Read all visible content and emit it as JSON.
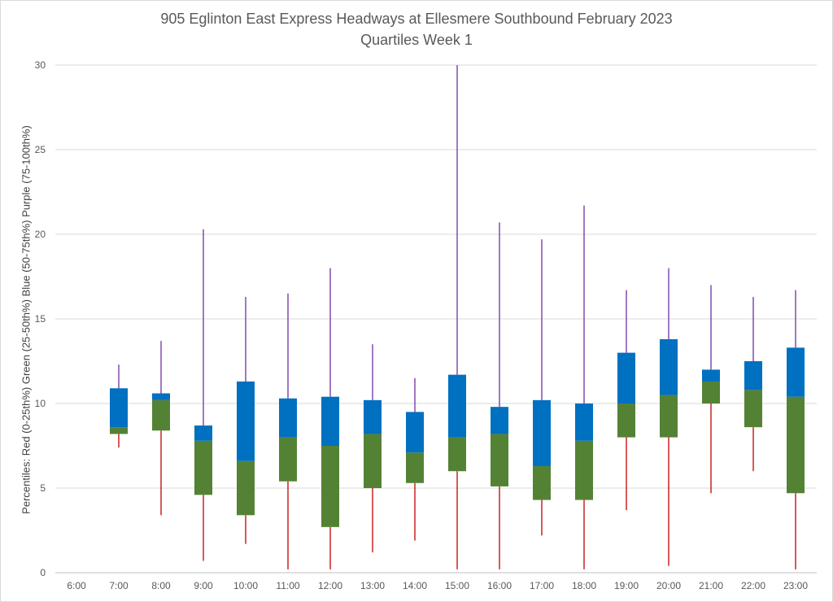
{
  "chart_data": {
    "type": "box",
    "title": "905 Eglinton East Express Headways at Ellesmere Southbound February 2023",
    "subtitle": "Quartiles Week 1",
    "ylabel": "Percentiles:  Red (0-25th%)  Green (25-50th%)  Blue (50-75th%)  Purple (75-100th%)",
    "ylim": [
      0,
      30
    ],
    "yticks": [
      0,
      5,
      10,
      15,
      20,
      25,
      30
    ],
    "grid": true,
    "categories": [
      "6:00",
      "7:00",
      "8:00",
      "9:00",
      "10:00",
      "11:00",
      "12:00",
      "13:00",
      "14:00",
      "15:00",
      "16:00",
      "17:00",
      "18:00",
      "19:00",
      "20:00",
      "21:00",
      "22:00",
      "23:00"
    ],
    "min": [
      null,
      7.4,
      3.4,
      0.7,
      1.7,
      0.2,
      0.2,
      1.2,
      1.9,
      0.2,
      0.2,
      2.2,
      0.2,
      3.7,
      0.4,
      4.7,
      6.0,
      0.2
    ],
    "q1": [
      null,
      8.2,
      8.4,
      4.6,
      3.4,
      5.4,
      2.7,
      5.0,
      5.3,
      6.0,
      5.1,
      4.3,
      4.3,
      8.0,
      8.0,
      10.0,
      8.6,
      4.7
    ],
    "median": [
      null,
      8.6,
      10.2,
      7.8,
      6.6,
      8.0,
      7.5,
      8.2,
      7.1,
      8.0,
      8.2,
      6.3,
      7.8,
      10.0,
      10.5,
      11.3,
      10.8,
      10.4
    ],
    "q3": [
      null,
      10.9,
      10.6,
      8.7,
      11.3,
      10.3,
      10.4,
      10.2,
      9.5,
      11.7,
      9.8,
      10.2,
      10.0,
      13.0,
      13.8,
      12.0,
      12.5,
      13.3
    ],
    "max": [
      null,
      12.3,
      13.7,
      20.3,
      16.3,
      16.5,
      18.0,
      13.5,
      11.5,
      30.0,
      20.7,
      19.7,
      21.7,
      16.7,
      18.0,
      17.0,
      16.3,
      16.7
    ],
    "colors": {
      "lower_whisker": "#c00000",
      "q1_to_median": "#548235",
      "median_to_q3": "#0070c0",
      "upper_whisker": "#7030a0",
      "grid": "#d9d9d9",
      "axis": "#bfbfbf"
    }
  }
}
